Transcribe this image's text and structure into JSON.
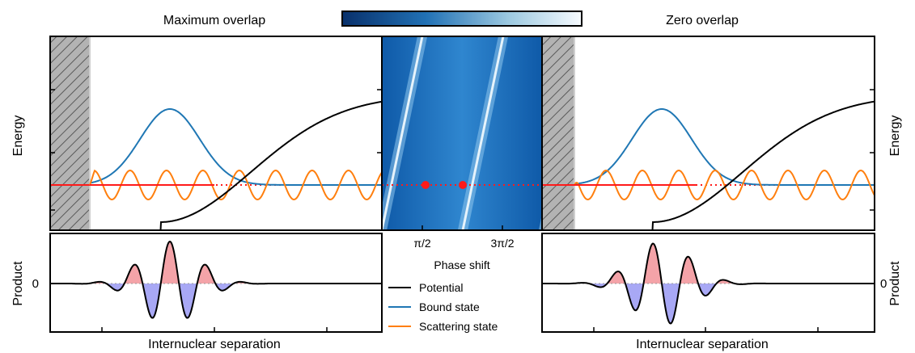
{
  "titles": {
    "left": "Maximum overlap",
    "right": "Zero overlap"
  },
  "axes": {
    "energy_label": "Energy",
    "product_label": "Product",
    "zero_tick": "0",
    "x_label": "Internuclear separation",
    "phase_label": "Phase shift",
    "phase_ticks": [
      "π/2",
      "3π/2"
    ]
  },
  "legend": [
    {
      "label": "Potential",
      "color": "#000000"
    },
    {
      "label": "Bound state",
      "color": "#1f77b4"
    },
    {
      "label": "Scattering state",
      "color": "#ff7f0e"
    }
  ],
  "colors": {
    "potential": "#000000",
    "bound": "#1f77b4",
    "scattering": "#ff7f0e",
    "energy_line": "#ff1a1a",
    "positive_fill": "#f4a3a8",
    "negative_fill": "#a8a8f5",
    "colormap_dark": "#08306b",
    "colormap_light": "#f7fbff"
  },
  "chart_data": {
    "type": "heatmap",
    "phase_ticks": [
      "π/2",
      "3π/2"
    ],
    "markers": [
      {
        "phase": "π/2",
        "meaning": "Maximum overlap"
      },
      {
        "phase": "π",
        "meaning": "Zero overlap"
      }
    ]
  }
}
